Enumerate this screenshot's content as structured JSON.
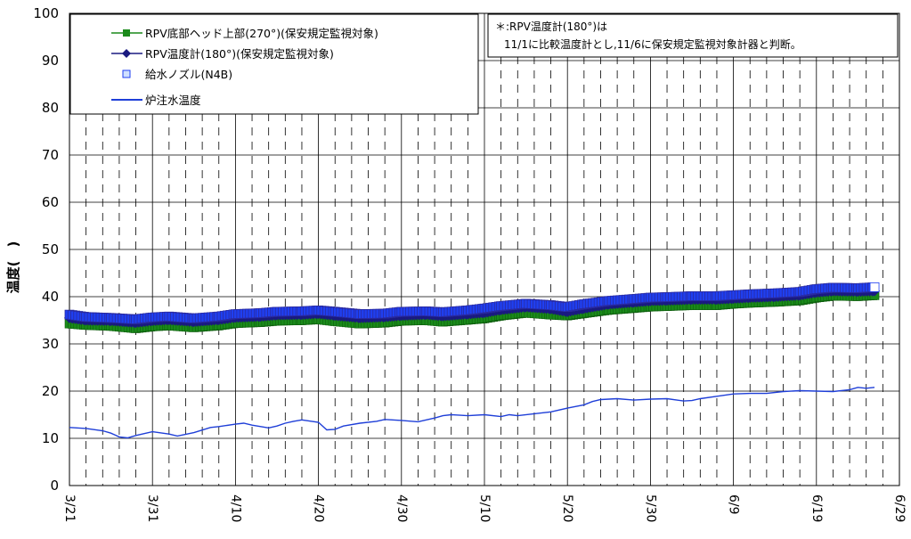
{
  "chart_data": {
    "type": "line",
    "ylabel": "温度(　)",
    "ylim": [
      0,
      100
    ],
    "yticks": [
      0,
      10,
      20,
      30,
      40,
      50,
      60,
      70,
      80,
      90,
      100
    ],
    "x_start": "3/21",
    "x_end": "6/29",
    "xticks": [
      {
        "label": "3/21",
        "day": 0
      },
      {
        "label": "3/31",
        "day": 10
      },
      {
        "label": "4/10",
        "day": 20
      },
      {
        "label": "4/20",
        "day": 30
      },
      {
        "label": "4/30",
        "day": 40
      },
      {
        "label": "5/10",
        "day": 50
      },
      {
        "label": "5/20",
        "day": 60
      },
      {
        "label": "5/30",
        "day": 70
      },
      {
        "label": "6/9",
        "day": 80
      },
      {
        "label": "6/19",
        "day": 90
      },
      {
        "label": "6/29",
        "day": 100
      }
    ],
    "grid": true,
    "legend_position": "top-left",
    "series": [
      {
        "name": "RPV底部ヘッド上部(270°)(保安規定監視対象)",
        "color": "#1a8a1a",
        "marker": "square-filled",
        "x": [
          0,
          2,
          5,
          8,
          10,
          12,
          15,
          18,
          20,
          23,
          25,
          28,
          30,
          32,
          35,
          38,
          40,
          43,
          45,
          48,
          50,
          52,
          55,
          58,
          60,
          62,
          65,
          68,
          70,
          72,
          75,
          78,
          80,
          82,
          85,
          88,
          90,
          92,
          95,
          97
        ],
        "y": [
          34.3,
          34.0,
          33.8,
          33.3,
          33.7,
          33.9,
          33.5,
          33.9,
          34.4,
          34.6,
          34.9,
          35.0,
          35.2,
          34.8,
          34.3,
          34.5,
          34.9,
          35.0,
          34.7,
          35.1,
          35.4,
          36.0,
          36.6,
          36.2,
          36.0,
          36.5,
          37.2,
          37.6,
          37.9,
          38.0,
          38.2,
          38.2,
          38.5,
          38.7,
          38.9,
          39.2,
          39.8,
          40.2,
          40.1,
          40.3
        ]
      },
      {
        "name": "RPV温度計(180°)(保安規定監視対象)",
        "color": "#1a1a80",
        "marker": "diamond-filled",
        "x": [
          0,
          2,
          5,
          8,
          10,
          12,
          15,
          18,
          20,
          23,
          25,
          28,
          30,
          32,
          35,
          38,
          40,
          43,
          45,
          48,
          50,
          52,
          55,
          58,
          60,
          62,
          65,
          68,
          70,
          72,
          75,
          78,
          80,
          82,
          85,
          88,
          90,
          92,
          95,
          97
        ],
        "y": [
          35.5,
          35.0,
          34.9,
          34.5,
          34.9,
          35.1,
          34.7,
          35.1,
          35.6,
          35.8,
          36.1,
          36.2,
          36.4,
          36.0,
          35.5,
          35.7,
          36.0,
          36.2,
          35.9,
          36.3,
          36.6,
          37.2,
          37.8,
          37.4,
          36.8,
          37.5,
          38.4,
          38.8,
          39.1,
          39.2,
          39.4,
          39.4,
          39.6,
          39.8,
          40.0,
          40.3,
          40.9,
          41.2,
          41.1,
          41.2
        ]
      },
      {
        "name": "給水ノズル(N4B)",
        "color": "#1f3ff0",
        "marker": "square-open",
        "x": [
          0,
          2,
          5,
          8,
          10,
          12,
          15,
          18,
          20,
          23,
          25,
          28,
          30,
          32,
          35,
          38,
          40,
          43,
          45,
          48,
          50,
          52,
          55,
          58,
          60,
          62,
          65,
          68,
          70,
          72,
          75,
          78,
          80,
          82,
          85,
          88,
          90,
          92,
          95,
          97
        ],
        "y": [
          36.2,
          35.7,
          35.5,
          35.2,
          35.6,
          35.8,
          35.4,
          35.8,
          36.3,
          36.5,
          36.8,
          36.9,
          37.1,
          36.8,
          36.3,
          36.4,
          36.8,
          36.9,
          36.7,
          37.1,
          37.5,
          38.0,
          38.5,
          38.2,
          37.8,
          38.4,
          39.1,
          39.5,
          39.8,
          39.9,
          40.1,
          40.1,
          40.3,
          40.5,
          40.7,
          41.0,
          41.6,
          41.9,
          41.8,
          42.0
        ]
      },
      {
        "name": "炉注水温度",
        "color": "#1f3fd8",
        "marker": "none",
        "x": [
          0,
          2,
          4,
          5,
          6,
          7,
          8,
          10,
          12,
          13,
          15,
          17,
          18,
          20,
          21,
          22,
          24,
          25,
          26,
          27,
          28,
          30,
          31,
          32,
          33,
          35,
          37,
          38,
          40,
          42,
          44,
          45,
          46,
          48,
          50,
          52,
          53,
          54,
          56,
          58,
          60,
          62,
          63,
          64,
          66,
          68,
          70,
          72,
          74,
          75,
          76,
          78,
          80,
          82,
          84,
          86,
          88,
          90,
          92,
          94,
          95,
          96,
          97
        ],
        "y": [
          12.3,
          12.1,
          11.6,
          11.1,
          10.3,
          10.1,
          10.6,
          11.4,
          10.9,
          10.5,
          11.2,
          12.3,
          12.5,
          13.0,
          13.2,
          12.8,
          12.2,
          12.6,
          13.2,
          13.6,
          13.9,
          13.4,
          11.8,
          11.9,
          12.6,
          13.2,
          13.6,
          14.0,
          13.8,
          13.5,
          14.3,
          14.8,
          15.0,
          14.8,
          15.0,
          14.6,
          15.0,
          14.8,
          15.2,
          15.6,
          16.4,
          17.1,
          17.8,
          18.2,
          18.4,
          18.1,
          18.3,
          18.4,
          17.9,
          18.0,
          18.4,
          18.9,
          19.4,
          19.5,
          19.5,
          19.9,
          20.1,
          20.0,
          19.9,
          20.3,
          20.8,
          20.6,
          20.8
        ]
      }
    ]
  },
  "note": {
    "line1": "＊:RPV温度計(180°)は",
    "line2": "11/1に比較温度計とし,11/6に保安規定監視対象計器と判断。"
  }
}
